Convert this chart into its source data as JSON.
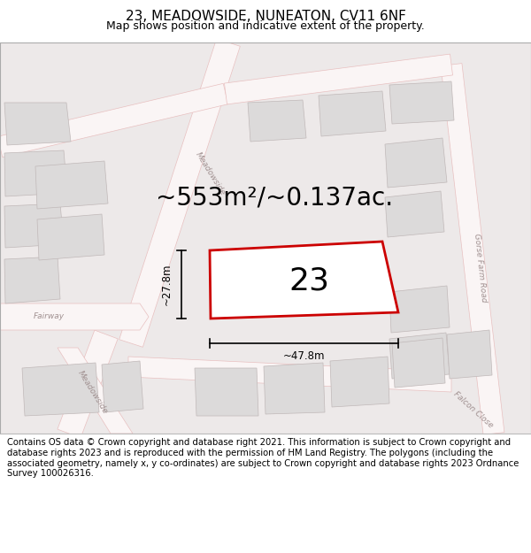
{
  "title": "23, MEADOWSIDE, NUNEATON, CV11 6NF",
  "subtitle": "Map shows position and indicative extent of the property.",
  "area_text": "~553m²/~0.137ac.",
  "property_number": "23",
  "dim_width": "~47.8m",
  "dim_height": "~27.8m",
  "footer_text": "Contains OS data © Crown copyright and database right 2021. This information is subject to Crown copyright and database rights 2023 and is reproduced with the permission of HM Land Registry. The polygons (including the associated geometry, namely x, y co-ordinates) are subject to Crown copyright and database rights 2023 Ordnance Survey 100026316.",
  "map_bg": "#ede9e9",
  "road_color": "#e8c0c0",
  "road_fill": "#faf5f5",
  "building_fill": "#dcdada",
  "building_stroke": "#c0b8b8",
  "property_stroke": "#cc0000",
  "property_fill": "#ffffff",
  "title_fontsize": 11,
  "subtitle_fontsize": 9,
  "area_fontsize": 20,
  "number_fontsize": 26,
  "footer_fontsize": 7.2,
  "road_label_color": "#a09090",
  "road_label_size": 6.5
}
